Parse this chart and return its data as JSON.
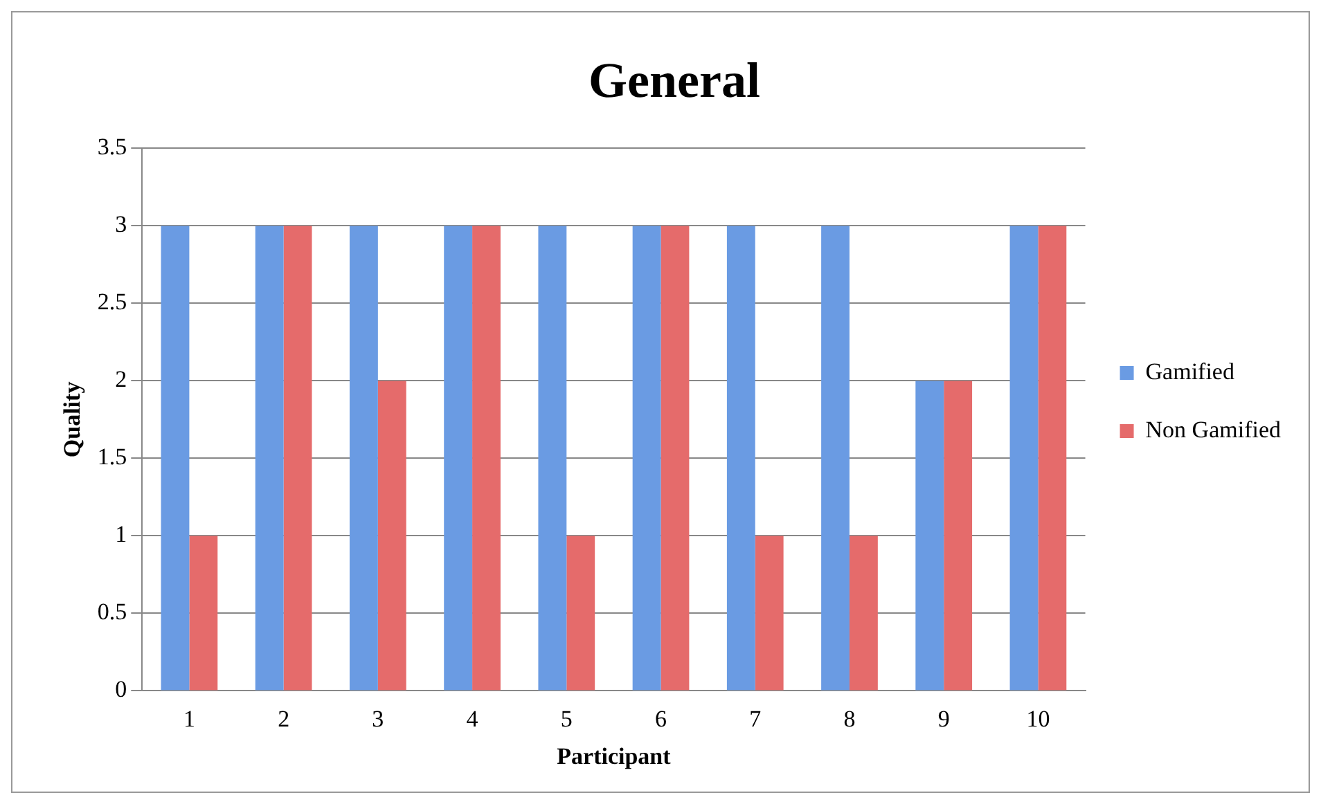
{
  "chart_data": {
    "type": "bar",
    "title": "General",
    "xlabel": "Participant",
    "ylabel": "Quality",
    "categories": [
      "1",
      "2",
      "3",
      "4",
      "5",
      "6",
      "7",
      "8",
      "9",
      "10"
    ],
    "series": [
      {
        "name": "Gamified",
        "color": "#6a9be3",
        "values": [
          3,
          3,
          3,
          3,
          3,
          3,
          3,
          3,
          2,
          3
        ]
      },
      {
        "name": "Non Gamified",
        "color": "#e56b6b",
        "values": [
          1,
          3,
          2,
          3,
          1,
          3,
          1,
          1,
          2,
          3
        ]
      }
    ],
    "ylim": [
      0,
      3.5
    ],
    "yticks": [
      0,
      0.5,
      1,
      1.5,
      2,
      2.5,
      3,
      3.5
    ],
    "grid": "y",
    "legend": "right"
  }
}
